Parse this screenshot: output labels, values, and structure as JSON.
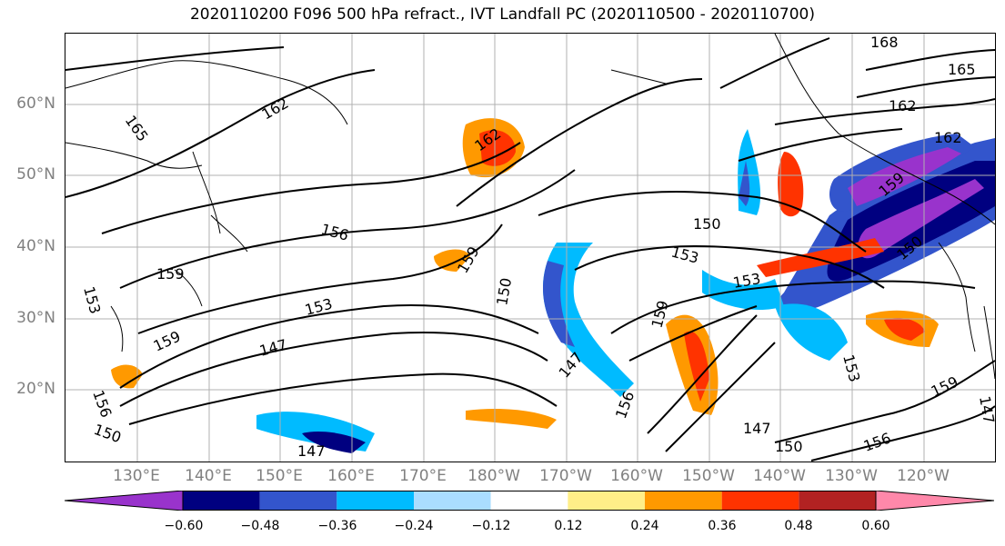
{
  "title": "2020110200 F096 500 hPa refract., IVT Landfall PC (2020110500 - 2020110700)",
  "lat_labels": [
    "60°N",
    "50°N",
    "40°N",
    "30°N",
    "20°N"
  ],
  "lon_labels": [
    "130°E",
    "140°E",
    "150°E",
    "160°E",
    "170°E",
    "180°W",
    "170°W",
    "160°W",
    "150°W",
    "140°W",
    "130°W",
    "120°W"
  ],
  "contour_labels": [
    "168",
    "165",
    "165",
    "162",
    "162",
    "162",
    "162",
    "159",
    "159",
    "159",
    "159",
    "159",
    "159",
    "156",
    "156",
    "156",
    "156",
    "153",
    "153",
    "153",
    "153",
    "153",
    "150",
    "150",
    "150",
    "150",
    "150",
    "147",
    "147",
    "147",
    "147",
    "147"
  ],
  "colorbar": {
    "ticks": [
      "−0.60",
      "−0.48",
      "−0.36",
      "−0.24",
      "−0.12",
      "0.12",
      "0.24",
      "0.36",
      "0.48",
      "0.60"
    ],
    "colors": [
      "#9933cc",
      "#000080",
      "#3355cc",
      "#00bbff",
      "#aaddff",
      "#ffffff",
      "#ffee88",
      "#ff9900",
      "#ff3300",
      "#b22222",
      "#ff88aa"
    ]
  }
}
